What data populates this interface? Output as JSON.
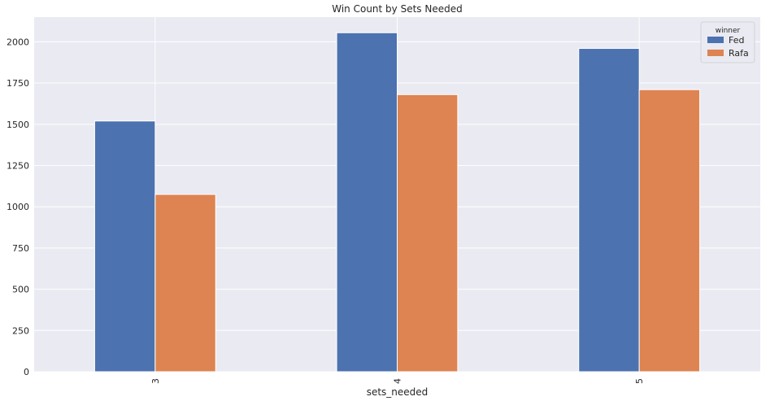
{
  "chart_data": {
    "type": "bar",
    "title": "Win Count by Sets Needed",
    "xlabel": "sets_needed",
    "ylabel": "",
    "categories": [
      "3",
      "4",
      "5"
    ],
    "series": [
      {
        "name": "Fed",
        "values": [
          1520,
          2055,
          1960
        ],
        "color": "#4c72b0"
      },
      {
        "name": "Rafa",
        "values": [
          1075,
          1680,
          1710
        ],
        "color": "#dd8452"
      }
    ],
    "ylim": [
      0,
      2150
    ],
    "yticks": [
      0,
      250,
      500,
      750,
      1000,
      1250,
      1500,
      1750,
      2000
    ],
    "legend": {
      "title": "winner",
      "placement": "top-right"
    },
    "grid": true,
    "background_color": "#eaeaf2",
    "grid_color": "#ffffff"
  }
}
